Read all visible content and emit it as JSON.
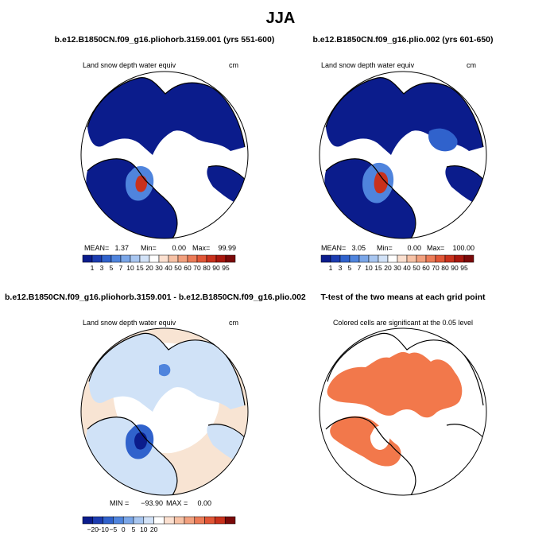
{
  "title": "JJA",
  "colors": {
    "ocean": "#ffffff",
    "coast": "#000000",
    "panel3_land": "#d0e2f7",
    "panel3_ocean": "#f8e4d3",
    "significant": "#f2784b"
  },
  "chart_data": [
    {
      "type": "heatmap",
      "title": "b.e12.B1850CN.f09_g16.pliohorb.3159.001 (yrs 551-600)",
      "subtitle": "Land snow depth water equiv",
      "units": "cm",
      "stats": {
        "mean_label": "MEAN=",
        "mean": "1.37",
        "min_label": "Min=",
        "min": "0.00",
        "max_label": "Max=",
        "max": "99.99"
      },
      "colorbar": {
        "labels": [
          "1",
          "3",
          "5",
          "7",
          "10",
          "15",
          "20",
          "30",
          "40",
          "50",
          "60",
          "70",
          "80",
          "90",
          "95"
        ],
        "colors": [
          "#0b1c8c",
          "#1c3cb0",
          "#3062cc",
          "#4f84dd",
          "#7aa6e8",
          "#a8c6f0",
          "#d2e2f7",
          "#ffffff",
          "#fbe0d0",
          "#f7c2a6",
          "#f2a07e",
          "#ec7b57",
          "#e15636",
          "#c9311c",
          "#a8170e",
          "#7a0909"
        ]
      }
    },
    {
      "type": "heatmap",
      "title": "b.e12.B1850CN.f09_g16.plio.002 (yrs 601-650)",
      "subtitle": "Land snow depth water equiv",
      "units": "cm",
      "stats": {
        "mean_label": "MEAN=",
        "mean": "3.05",
        "min_label": "Min=",
        "min": "0.00",
        "max_label": "Max=",
        "max": "100.00"
      },
      "colorbar": {
        "labels": [
          "1",
          "3",
          "5",
          "7",
          "10",
          "15",
          "20",
          "30",
          "40",
          "50",
          "60",
          "70",
          "80",
          "90",
          "95"
        ],
        "colors": [
          "#0b1c8c",
          "#1c3cb0",
          "#3062cc",
          "#4f84dd",
          "#7aa6e8",
          "#a8c6f0",
          "#d2e2f7",
          "#ffffff",
          "#fbe0d0",
          "#f7c2a6",
          "#f2a07e",
          "#ec7b57",
          "#e15636",
          "#c9311c",
          "#a8170e",
          "#7a0909"
        ]
      }
    },
    {
      "type": "heatmap",
      "title": "b.e12.B1850CN.f09_g16.pliohorb.3159.001 - b.e12.B1850CN.f09_g16.plio.002",
      "subtitle": "Land snow depth water equiv",
      "units": "cm",
      "stats": {
        "min_label": "MIN =",
        "min": "−93.90",
        "max_label": "MAX =",
        "max": "0.00"
      },
      "colorbar": {
        "labels": [
          "−20",
          "−10",
          "−5",
          "0",
          "5",
          "10",
          "20"
        ],
        "colors": [
          "#0b1c8c",
          "#1c3cb0",
          "#3062cc",
          "#4f84dd",
          "#7aa6e8",
          "#a8c6f0",
          "#d2e2f7",
          "#ffffff",
          "#fbe0d0",
          "#f7c2a6",
          "#f2a07e",
          "#ec7b57",
          "#e15636",
          "#c9311c",
          "#7a0909"
        ]
      }
    },
    {
      "type": "heatmap",
      "title": "T-test of the two means at each grid point",
      "subtitle": "Colored cells are significant at the 0.05 level"
    }
  ]
}
